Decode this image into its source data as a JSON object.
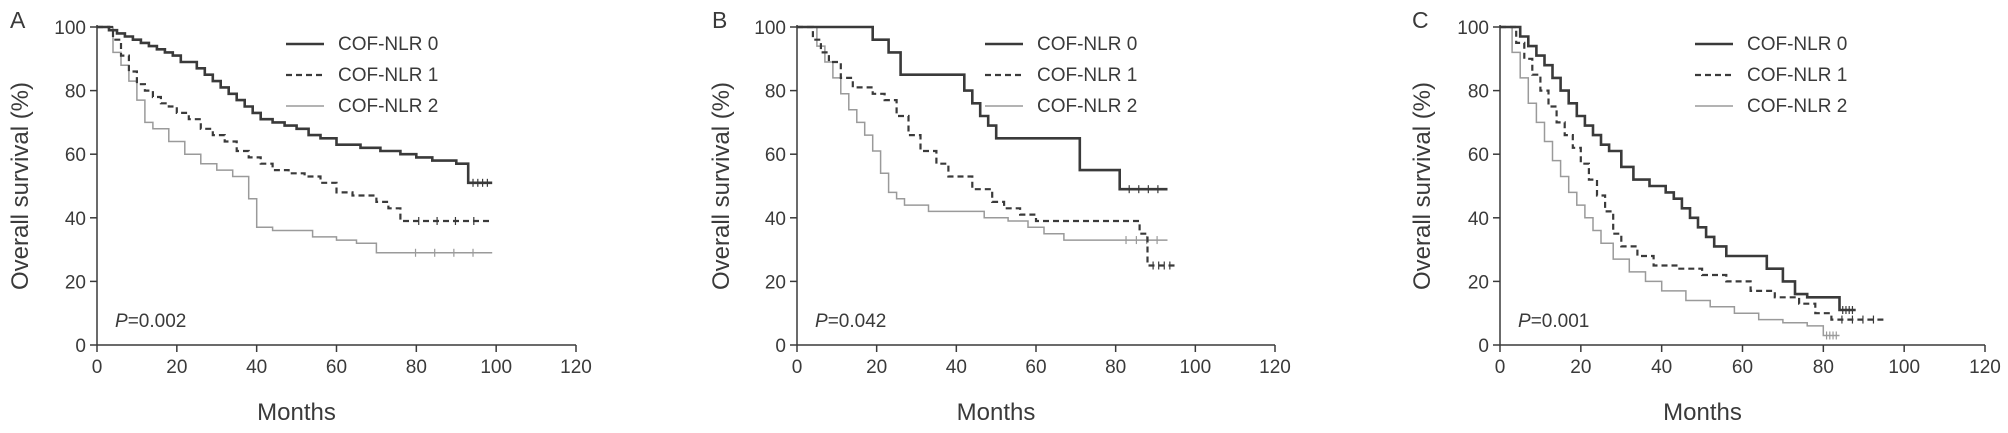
{
  "chart_data": [
    {
      "type": "line",
      "panel_label": "A",
      "xlabel": "Months",
      "ylabel": "Overall survival (%)",
      "xlim": [
        0,
        120
      ],
      "ylim": [
        0,
        100
      ],
      "xticks": [
        0,
        20,
        40,
        60,
        80,
        100,
        120
      ],
      "yticks": [
        0,
        20,
        40,
        60,
        80,
        100
      ],
      "grid": false,
      "legend_position": "top-right",
      "annotation": {
        "italic": "P",
        "text": "=0.002"
      },
      "series": [
        {
          "name": "COF-NLR 0",
          "style": "solid-thick",
          "x": [
            0,
            3,
            5,
            7,
            9,
            11,
            13,
            15,
            17,
            19,
            21,
            25,
            27,
            29,
            31,
            33,
            35,
            37,
            39,
            41,
            44,
            47,
            50,
            53,
            56,
            60,
            66,
            71,
            76,
            80,
            84,
            90,
            93,
            99
          ],
          "y": [
            100,
            99,
            98,
            97,
            96,
            95,
            94,
            93,
            92,
            91,
            89,
            87,
            85,
            83,
            81,
            79,
            77,
            75,
            73,
            71,
            70,
            69,
            68,
            66,
            65,
            63,
            62,
            61,
            60,
            59,
            58,
            57,
            51,
            51
          ]
        },
        {
          "name": "COF-NLR 1",
          "style": "dashed",
          "x": [
            0,
            4,
            6,
            8,
            10,
            12,
            14,
            16,
            18,
            20,
            23,
            26,
            29,
            32,
            35,
            38,
            41,
            44,
            48,
            52,
            56,
            60,
            64,
            70,
            73,
            76,
            99
          ],
          "y": [
            100,
            96,
            91,
            86,
            82,
            80,
            78,
            76,
            75,
            73,
            71,
            68,
            66,
            64,
            61,
            59,
            57,
            55,
            54,
            53,
            51,
            48,
            47,
            45,
            43,
            39,
            39
          ]
        },
        {
          "name": "COF-NLR 2",
          "style": "thin",
          "x": [
            0,
            4,
            6,
            8,
            10,
            12,
            14,
            18,
            22,
            26,
            30,
            34,
            38,
            40,
            44,
            54,
            60,
            65,
            70,
            75,
            99
          ],
          "y": [
            100,
            92,
            88,
            83,
            77,
            70,
            68,
            64,
            60,
            57,
            55,
            53,
            46,
            37,
            36,
            34,
            33,
            32,
            29,
            29,
            29
          ]
        }
      ]
    },
    {
      "type": "line",
      "panel_label": "B",
      "xlabel": "Months",
      "ylabel": "Overall survival (%)",
      "xlim": [
        0,
        120
      ],
      "ylim": [
        0,
        100
      ],
      "xticks": [
        0,
        20,
        40,
        60,
        80,
        100,
        120
      ],
      "yticks": [
        0,
        20,
        40,
        60,
        80,
        100
      ],
      "grid": false,
      "legend_position": "top-right",
      "annotation": {
        "italic": "P",
        "text": "=0.042"
      },
      "series": [
        {
          "name": "COF-NLR 0",
          "style": "solid-thick",
          "x": [
            0,
            19,
            23,
            26,
            42,
            44,
            46,
            48,
            50,
            71,
            81,
            93
          ],
          "y": [
            100,
            96,
            92,
            85,
            80,
            76,
            72,
            69,
            65,
            55,
            49,
            49
          ]
        },
        {
          "name": "COF-NLR 1",
          "style": "dashed",
          "x": [
            0,
            4,
            6,
            8,
            11,
            14,
            19,
            22,
            25,
            28,
            31,
            35,
            38,
            44,
            49,
            52,
            56,
            60,
            86,
            88,
            95
          ],
          "y": [
            100,
            96,
            92,
            89,
            84,
            81,
            79,
            77,
            72,
            66,
            61,
            57,
            53,
            49,
            45,
            43,
            41,
            39,
            35,
            25,
            25
          ]
        },
        {
          "name": "COF-NLR 2",
          "style": "thin",
          "x": [
            0,
            5,
            7,
            9,
            11,
            13,
            15,
            17,
            19,
            21,
            23,
            25,
            27,
            33,
            47,
            53,
            58,
            62,
            67,
            75,
            80,
            93
          ],
          "y": [
            100,
            94,
            89,
            84,
            79,
            74,
            70,
            66,
            61,
            54,
            48,
            46,
            44,
            42,
            40,
            39,
            37,
            35,
            33,
            33,
            33,
            33
          ]
        }
      ]
    },
    {
      "type": "line",
      "panel_label": "C",
      "xlabel": "Months",
      "ylabel": "Overall survival (%)",
      "xlim": [
        0,
        120
      ],
      "ylim": [
        0,
        100
      ],
      "xticks": [
        0,
        20,
        40,
        60,
        80,
        100,
        120
      ],
      "yticks": [
        0,
        20,
        40,
        60,
        80,
        100
      ],
      "grid": false,
      "legend_position": "top-right",
      "annotation": {
        "italic": "P",
        "text": "=0.001"
      },
      "series": [
        {
          "name": "COF-NLR 0",
          "style": "solid-thick",
          "x": [
            0,
            5,
            7,
            9,
            11,
            13,
            15,
            17,
            19,
            21,
            23,
            25,
            27,
            30,
            33,
            37,
            41,
            43,
            45,
            47,
            49,
            51,
            53,
            56,
            61,
            66,
            70,
            73,
            76,
            79,
            84,
            88
          ],
          "y": [
            100,
            97,
            94,
            91,
            88,
            84,
            80,
            76,
            72,
            69,
            66,
            63,
            61,
            56,
            52,
            50,
            48,
            46,
            43,
            40,
            37,
            34,
            31,
            28,
            28,
            24,
            20,
            16,
            15,
            15,
            11,
            11
          ]
        },
        {
          "name": "COF-NLR 1",
          "style": "dashed",
          "x": [
            0,
            4,
            6,
            8,
            10,
            12,
            14,
            16,
            18,
            20,
            22,
            24,
            26,
            28,
            30,
            34,
            38,
            44,
            50,
            56,
            62,
            68,
            74,
            78,
            82,
            95
          ],
          "y": [
            100,
            95,
            90,
            85,
            80,
            75,
            70,
            66,
            62,
            57,
            52,
            47,
            42,
            35,
            31,
            28,
            25,
            24,
            22,
            20,
            17,
            15,
            13,
            10,
            8,
            8
          ]
        },
        {
          "name": "COF-NLR 2",
          "style": "thin",
          "x": [
            0,
            3,
            5,
            7,
            9,
            11,
            13,
            15,
            17,
            19,
            21,
            23,
            25,
            28,
            32,
            36,
            40,
            46,
            52,
            58,
            64,
            70,
            76,
            80,
            84
          ],
          "y": [
            100,
            92,
            84,
            76,
            70,
            64,
            58,
            53,
            48,
            44,
            40,
            36,
            32,
            27,
            23,
            20,
            17,
            14,
            12,
            10,
            8,
            7,
            6,
            3,
            3
          ]
        }
      ]
    }
  ]
}
